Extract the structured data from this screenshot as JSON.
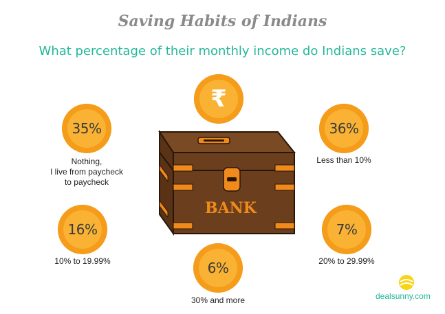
{
  "chart_data": {
    "type": "infographic",
    "title": "Saving Habits of Indians",
    "subtitle": "What percentage of their monthly income do Indians save?",
    "categories": [
      {
        "label_lines": [
          "Nothing,",
          "I live from paycheck",
          "to paycheck"
        ],
        "value": 35,
        "display": "35%"
      },
      {
        "label_lines": [
          "Less than 10%"
        ],
        "value": 36,
        "display": "36%"
      },
      {
        "label_lines": [
          "10% to 19.99%"
        ],
        "value": 16,
        "display": "16%"
      },
      {
        "label_lines": [
          "20% to 29.99%"
        ],
        "value": 7,
        "display": "7%"
      },
      {
        "label_lines": [
          "30% and more"
        ],
        "value": 6,
        "display": "6%"
      }
    ]
  },
  "illustration": {
    "rupee_symbol": "₹",
    "bank_text": "BANK",
    "icon": "money-box-icon"
  },
  "brand": "dealsunny.com",
  "colors": {
    "title": "#8a8a8a",
    "subtitle": "#25b79a",
    "badge": "#f9b233",
    "badge_ring": "#f59c1a",
    "box": "#6b3e1e",
    "box_trim": "#f08a1c"
  }
}
